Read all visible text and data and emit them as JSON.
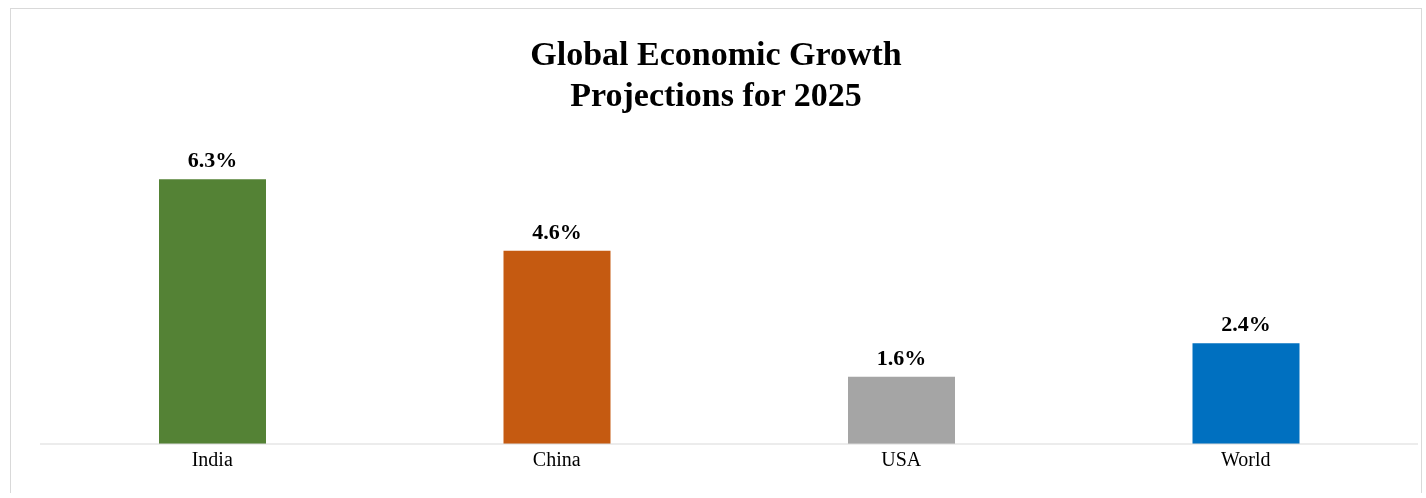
{
  "chart_data": {
    "type": "bar",
    "title": "Global Economic Growth Projections for 2025",
    "categories": [
      "India",
      "China",
      "USA",
      "World"
    ],
    "values": [
      6.3,
      4.6,
      1.6,
      2.4
    ],
    "colors": [
      "#548235",
      "#c55a11",
      "#a5a5a5",
      "#0070c0"
    ],
    "value_labels": [
      "6.3%",
      "4.6%",
      "1.6%",
      "2.4%"
    ]
  }
}
